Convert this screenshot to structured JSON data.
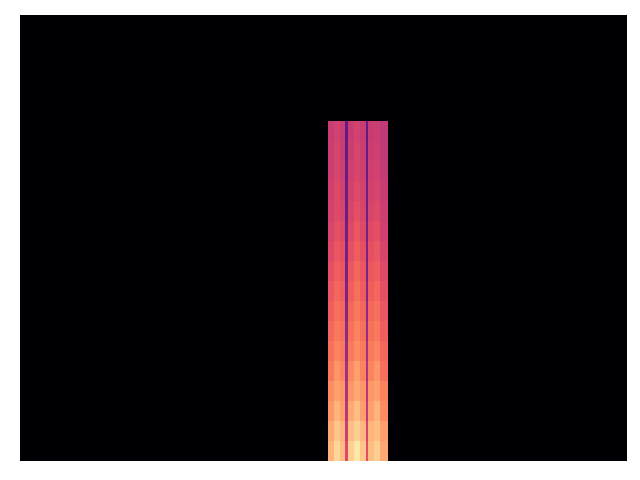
{
  "chart_data": {
    "type": "heatmap",
    "x_edges": [
      0,
      308,
      314,
      320,
      325,
      328,
      334,
      340,
      346,
      348,
      354,
      360,
      368,
      607
    ],
    "y_edges": [
      0,
      20,
      40,
      60,
      80,
      100,
      120,
      140,
      160,
      180,
      200,
      220,
      240,
      260,
      280,
      300,
      320,
      340,
      446
    ],
    "cells": [
      [
        0,
        0.84,
        0.92,
        0.86,
        0.6,
        0.9,
        0.95,
        0.88,
        0.62,
        0.86,
        0.9,
        0.82,
        0
      ],
      [
        0,
        0.82,
        0.88,
        0.84,
        0.55,
        0.86,
        0.9,
        0.85,
        0.58,
        0.84,
        0.86,
        0.8,
        0
      ],
      [
        0,
        0.78,
        0.84,
        0.8,
        0.5,
        0.82,
        0.86,
        0.8,
        0.52,
        0.8,
        0.84,
        0.76,
        0
      ],
      [
        0,
        0.76,
        0.8,
        0.78,
        0.48,
        0.78,
        0.82,
        0.78,
        0.5,
        0.78,
        0.8,
        0.74,
        0
      ],
      [
        0,
        0.72,
        0.78,
        0.74,
        0.45,
        0.75,
        0.8,
        0.74,
        0.48,
        0.74,
        0.78,
        0.7,
        0
      ],
      [
        0,
        0.7,
        0.74,
        0.72,
        0.42,
        0.72,
        0.76,
        0.72,
        0.45,
        0.72,
        0.74,
        0.68,
        0
      ],
      [
        0,
        0.68,
        0.72,
        0.7,
        0.4,
        0.7,
        0.74,
        0.7,
        0.42,
        0.7,
        0.72,
        0.66,
        0
      ],
      [
        0,
        0.66,
        0.7,
        0.68,
        0.38,
        0.68,
        0.72,
        0.68,
        0.4,
        0.68,
        0.7,
        0.64,
        0
      ],
      [
        0,
        0.64,
        0.68,
        0.66,
        0.36,
        0.66,
        0.7,
        0.66,
        0.38,
        0.66,
        0.68,
        0.62,
        0
      ],
      [
        0,
        0.62,
        0.66,
        0.64,
        0.35,
        0.64,
        0.68,
        0.64,
        0.36,
        0.64,
        0.66,
        0.6,
        0
      ],
      [
        0,
        0.6,
        0.64,
        0.62,
        0.34,
        0.62,
        0.66,
        0.62,
        0.35,
        0.62,
        0.64,
        0.58,
        0
      ],
      [
        0,
        0.58,
        0.62,
        0.6,
        0.33,
        0.6,
        0.64,
        0.6,
        0.34,
        0.6,
        0.62,
        0.56,
        0
      ],
      [
        0,
        0.57,
        0.6,
        0.58,
        0.32,
        0.58,
        0.62,
        0.58,
        0.33,
        0.58,
        0.6,
        0.55,
        0
      ],
      [
        0,
        0.56,
        0.6,
        0.57,
        0.32,
        0.57,
        0.6,
        0.57,
        0.32,
        0.57,
        0.58,
        0.54,
        0
      ],
      [
        0,
        0.55,
        0.58,
        0.56,
        0.31,
        0.56,
        0.58,
        0.56,
        0.31,
        0.56,
        0.57,
        0.53,
        0
      ],
      [
        0,
        0.55,
        0.58,
        0.55,
        0.3,
        0.55,
        0.58,
        0.55,
        0.3,
        0.55,
        0.56,
        0.52,
        0
      ],
      [
        0,
        0.54,
        0.57,
        0.54,
        0.3,
        0.54,
        0.57,
        0.54,
        0.3,
        0.54,
        0.55,
        0.52,
        0
      ],
      [
        0,
        0,
        0,
        0,
        0,
        0,
        0,
        0,
        0,
        0,
        0,
        0,
        0
      ]
    ],
    "xlim": [
      0,
      607
    ],
    "ylim": [
      0,
      446
    ],
    "zlim": [
      0,
      1
    ],
    "color": "magma",
    "tick_labels": false
  }
}
